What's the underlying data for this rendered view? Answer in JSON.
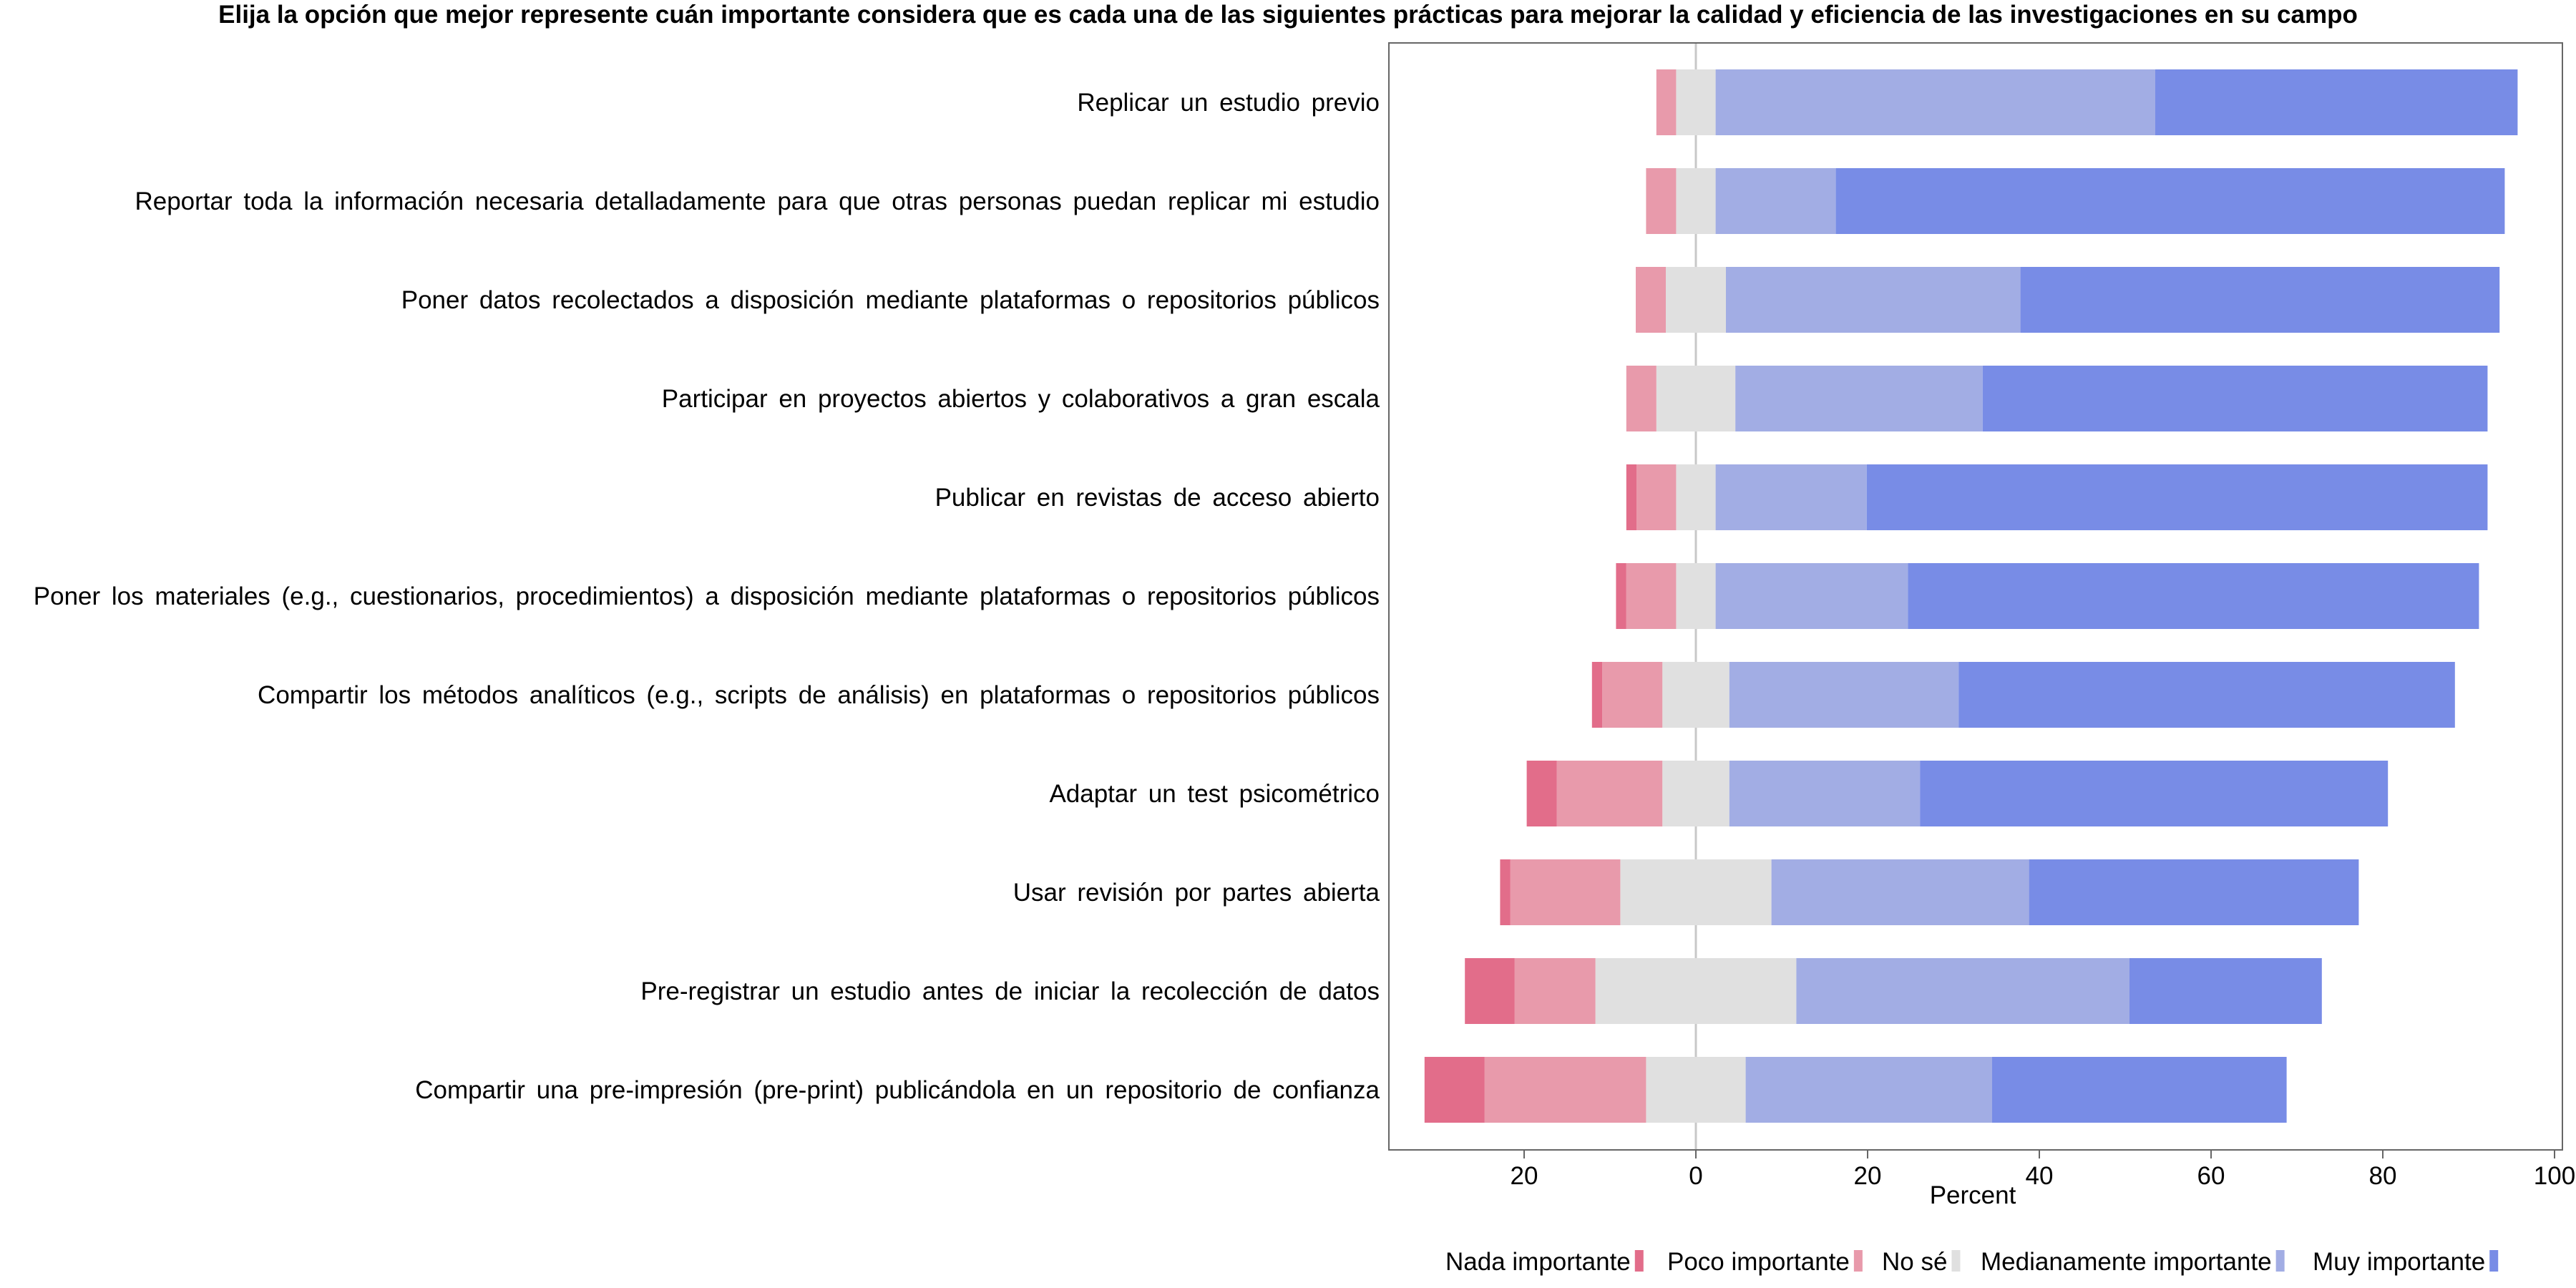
{
  "chart_data": {
    "type": "bar",
    "orientation": "horizontal",
    "stacked": "diverging",
    "title": "Elija la opción que mejor represente cuán importante considera que es cada una de las siguientes prácticas para mejorar la calidad y eficiencia de las investigaciones en su campo",
    "xlabel": "Percent",
    "ylabel": "",
    "xlim": [
      -36,
      100
    ],
    "xticks": [
      -20,
      0,
      20,
      40,
      60,
      80,
      100
    ],
    "xtick_labels": [
      "20",
      "0",
      "20",
      "40",
      "60",
      "80",
      "100"
    ],
    "legend_position": "bottom",
    "categories": [
      "Replicar un estudio previo",
      "Reportar toda la información necesaria detalladamente para que otras personas puedan replicar mi estudio",
      "Poner datos recolectados a disposición mediante plataformas o repositorios públicos",
      "Participar en proyectos abiertos y colaborativos a gran escala",
      "Publicar en revistas de acceso abierto",
      "Poner los materiales (e.g., cuestionarios, procedimientos) a disposición mediante plataformas o repositorios públicos",
      "Compartir los métodos analíticos (e.g., scripts de análisis) en plataformas o repositorios públicos",
      "Adaptar un test psicométrico",
      "Usar revisión por partes abierta",
      "Pre-registrar un estudio antes de iniciar la recolección de datos",
      "Compartir una pre-impresión (pre-print) publicándola en un repositorio de confianza"
    ],
    "series": [
      {
        "name": "Nada importante",
        "color": "#e26d8a",
        "side": "negative",
        "values": [
          0,
          0,
          0,
          0,
          1.2,
          1.2,
          1.2,
          3.5,
          1.2,
          5.8,
          7.0
        ]
      },
      {
        "name": "Poco importante",
        "color": "#e89aab",
        "side": "negative",
        "values": [
          2.3,
          3.5,
          3.5,
          3.5,
          4.6,
          5.8,
          7.0,
          12.3,
          12.8,
          9.4,
          18.8
        ]
      },
      {
        "name": "No sé",
        "color": "#e0e0e0",
        "side": "split",
        "values": [
          4.6,
          4.6,
          7.0,
          9.2,
          4.6,
          4.6,
          7.8,
          7.8,
          17.6,
          23.4,
          11.6
        ]
      },
      {
        "name": "Medianamente importante",
        "color": "#a2ade4",
        "side": "positive",
        "values": [
          51.2,
          14.0,
          34.3,
          28.8,
          17.6,
          22.4,
          26.7,
          22.2,
          30.0,
          38.8,
          28.7
        ]
      },
      {
        "name": "Muy importante",
        "color": "#788ce6",
        "side": "positive",
        "values": [
          42.2,
          77.9,
          55.8,
          58.8,
          72.3,
          66.5,
          57.8,
          54.5,
          38.4,
          22.4,
          34.3
        ]
      }
    ]
  }
}
